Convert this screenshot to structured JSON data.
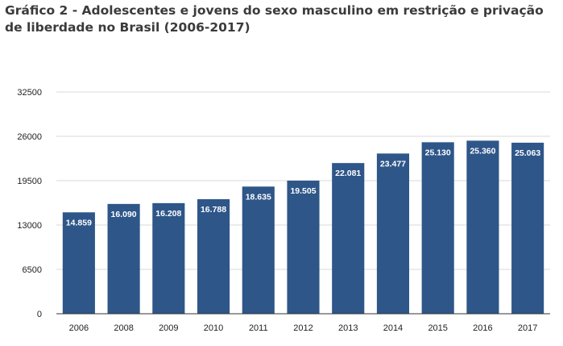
{
  "chart_data": {
    "type": "bar",
    "title": "Gráfico 2 - Adolescentes e jovens do sexo masculino em restrição e privação de liberdade no Brasil (2006-2017)",
    "xlabel": "",
    "ylabel": "",
    "categories": [
      "2006",
      "2008",
      "2009",
      "2010",
      "2011",
      "2012",
      "2013",
      "2014",
      "2015",
      "2016",
      "2017"
    ],
    "values": [
      14859,
      16090,
      16208,
      16788,
      18635,
      19505,
      22081,
      23477,
      25130,
      25360,
      25063
    ],
    "value_labels": [
      "14.859",
      "16.090",
      "16.208",
      "16.788",
      "18.635",
      "19.505",
      "22.081",
      "23.477",
      "25.130",
      "25.360",
      "25.063"
    ],
    "yticks": [
      0,
      6500,
      13000,
      19500,
      26000,
      32500
    ],
    "ytick_labels": [
      "0",
      "6500",
      "13000",
      "19500",
      "26000",
      "32500"
    ],
    "ylim": [
      0,
      32500
    ],
    "grid": true,
    "legend": "none",
    "colors": {
      "bar": "#2e5689",
      "grid": "#d9d9d9",
      "axis": "#333333"
    }
  }
}
